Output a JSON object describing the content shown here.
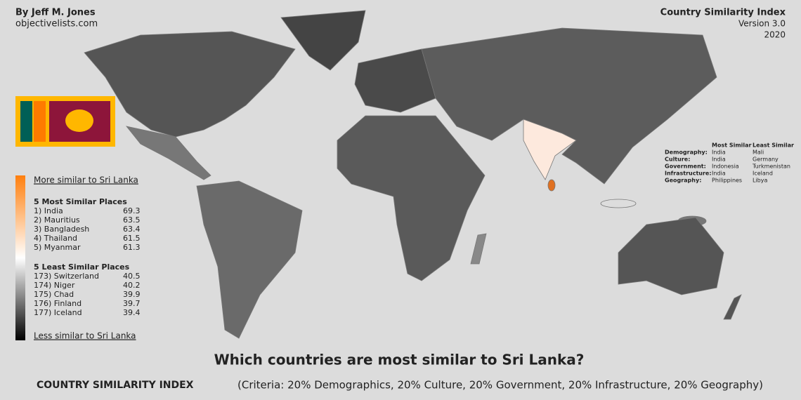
{
  "header": {
    "author": "By Jeff M. Jones",
    "site": "objectivelists.com",
    "title": "Country Similarity Index",
    "version": "Version 3.0",
    "year": "2020"
  },
  "legend": {
    "more_label": "More similar to Sri Lanka",
    "most_heading": "5 Most Similar Places",
    "most": [
      {
        "place": "1) India",
        "score": 69.3
      },
      {
        "place": "2) Mauritius",
        "score": 63.5
      },
      {
        "place": "3) Bangladesh",
        "score": 63.4
      },
      {
        "place": "4) Thailand",
        "score": 61.5
      },
      {
        "place": "5) Myanmar",
        "score": 61.3
      }
    ],
    "least_heading": "5 Least Similar Places",
    "least": [
      {
        "place": "173) Switzerland",
        "score": 40.5
      },
      {
        "place": "174) Niger",
        "score": 40.2
      },
      {
        "place": "175) Chad",
        "score": 39.9
      },
      {
        "place": "176) Finland",
        "score": 39.7
      },
      {
        "place": "177) Iceland",
        "score": 39.4
      }
    ],
    "less_label": "Less similar to Sri Lanka"
  },
  "criteria_table": {
    "columns": [
      "Most Similar",
      "Least Similar"
    ],
    "rows": [
      [
        "Demography:",
        "India",
        "Mali"
      ],
      [
        "Culture:",
        "India",
        "Germany"
      ],
      [
        "Government:",
        "Indonesia",
        "Turkmenistan"
      ],
      [
        "Infrastructure:",
        "India",
        "Iceland"
      ],
      [
        "Geography:",
        "Philippines",
        "Libya"
      ]
    ]
  },
  "footer": {
    "question": "Which countries are most similar to Sri Lanka?",
    "index_name": "COUNTRY SIMILARITY INDEX",
    "criteria": "(Criteria: 20% Demographics, 20% Culture, 20% Government, 20% Infrastructure, 20% Geography)"
  }
}
